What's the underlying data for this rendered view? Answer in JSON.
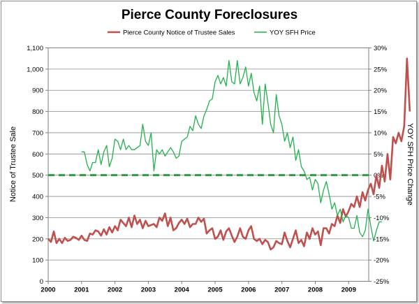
{
  "chart_data": {
    "type": "line",
    "title": "Pierce County Foreclosures",
    "ylabel": "Notice of Trustee Sale",
    "y2label": "YOY SFH Price Change",
    "xlim": [
      2000,
      2009.6
    ],
    "ylim": [
      0,
      1100
    ],
    "y2lim": [
      -25,
      30
    ],
    "x_ticks": [
      "2000",
      "2001",
      "2002",
      "2003",
      "2004",
      "2005",
      "2006",
      "2007",
      "2008",
      "2009"
    ],
    "y_ticks": [
      "0",
      "100",
      "200",
      "300",
      "400",
      "500",
      "600",
      "700",
      "800",
      "900",
      "1,000",
      "1,100"
    ],
    "y2_ticks": [
      "-25%",
      "-20%",
      "-15%",
      "-10%",
      "-5%",
      "0%",
      "5%",
      "10%",
      "15%",
      "20%",
      "25%",
      "30%"
    ],
    "legend_position": "top-center",
    "grid": "horizontal",
    "reference_line": {
      "axis": "y2",
      "value": 0,
      "color": "#2e9e3e",
      "style": "dashed"
    },
    "series": [
      {
        "name": "Pierce County Notice of Trustee Sales",
        "axis": "left",
        "color": "#c0504d",
        "x_start": 2000,
        "step": 0.0833,
        "values": [
          200,
          185,
          235,
          180,
          200,
          180,
          205,
          190,
          195,
          210,
          205,
          195,
          215,
          195,
          190,
          225,
          220,
          240,
          235,
          215,
          245,
          220,
          255,
          230,
          260,
          240,
          290,
          275,
          260,
          300,
          255,
          310,
          270,
          290,
          250,
          285,
          260,
          265,
          270,
          255,
          300,
          285,
          320,
          260,
          300,
          240,
          250,
          275,
          290,
          270,
          295,
          255,
          270,
          270,
          300,
          280,
          295,
          225,
          240,
          250,
          200,
          210,
          240,
          195,
          235,
          250,
          215,
          185,
          210,
          250,
          210,
          200,
          240,
          260,
          200,
          190,
          200,
          175,
          195,
          185,
          150,
          160,
          190,
          180,
          175,
          230,
          190,
          160,
          200,
          240,
          180,
          195,
          165,
          230,
          200,
          250,
          220,
          235,
          170,
          250,
          250,
          225,
          270,
          260,
          310,
          275,
          340,
          305,
          330,
          365,
          350,
          400,
          350,
          420,
          380,
          430,
          460,
          410,
          500,
          440,
          545,
          470,
          600,
          480,
          680,
          650,
          700,
          660,
          730,
          1050,
          800
        ]
      },
      {
        "name": "YOY SFH Price",
        "axis": "right",
        "color": "#22b14c",
        "x_start": 2001,
        "step": 0.0833,
        "values": [
          5.5,
          5.5,
          2.5,
          1.0,
          3.0,
          3.0,
          6.0,
          2.5,
          5.5,
          7.0,
          2.0,
          4.0,
          8.5,
          8.0,
          6.0,
          8.5,
          6.0,
          7.0,
          6.0,
          6.0,
          6.5,
          7.0,
          12.0,
          8.0,
          7.0,
          10.0,
          1.0,
          6.0,
          5.0,
          6.0,
          4.5,
          5.5,
          6.5,
          5.5,
          4.0,
          4.5,
          8.0,
          8.5,
          9.0,
          11.5,
          10.5,
          14.0,
          12.0,
          11.0,
          14.0,
          15.5,
          17.5,
          18.0,
          22.0,
          23.5,
          21.5,
          23.0,
          21.0,
          27.0,
          22.0,
          21.5,
          27.0,
          21.5,
          23.0,
          25.5,
          21.0,
          24.0,
          19.5,
          17.5,
          21.0,
          12.0,
          21.5,
          17.0,
          12.0,
          10.0,
          19.0,
          14.0,
          12.0,
          8.0,
          10.0,
          6.5,
          9.0,
          3.5,
          6.0,
          2.0,
          1.0,
          -1.0,
          -0.5,
          -3.5,
          -1.0,
          -2.0,
          -6.5,
          -3.5,
          -1.5,
          -4.5,
          -8.0,
          -6.5,
          -9.5,
          -8.0,
          -11.0,
          -9.5,
          -10.0,
          -12.5,
          -12.5,
          -9.5,
          -13.5,
          -14.5,
          -13.0,
          -8.0,
          -12.0,
          -15.5,
          -13.0,
          -11.0,
          -11.0
        ]
      }
    ]
  }
}
